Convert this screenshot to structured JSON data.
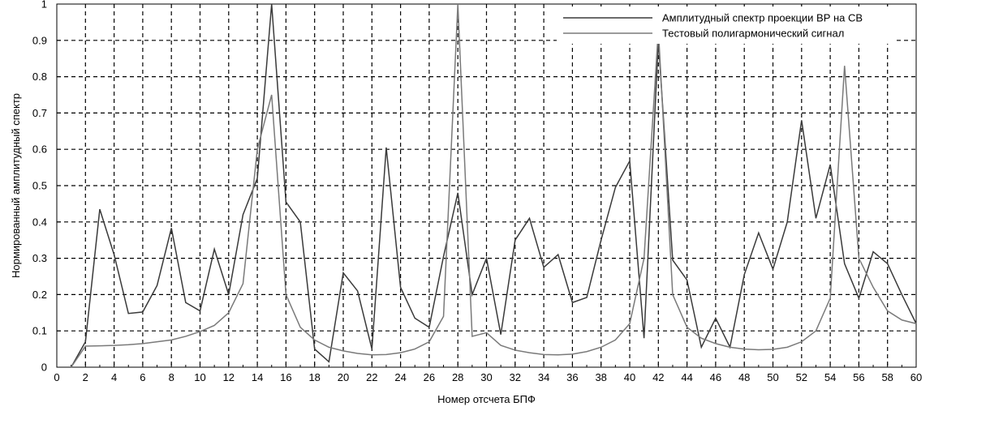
{
  "chart_data": {
    "type": "line",
    "xlabel": "Номер отсчета БПФ",
    "ylabel": "Нормированный амплитудный спектр",
    "xlim": [
      0,
      60
    ],
    "ylim": [
      0,
      1
    ],
    "x_ticks": [
      0,
      2,
      4,
      6,
      8,
      10,
      12,
      14,
      16,
      18,
      20,
      22,
      24,
      26,
      28,
      30,
      32,
      34,
      36,
      38,
      40,
      42,
      44,
      46,
      48,
      50,
      52,
      54,
      56,
      58,
      60
    ],
    "y_ticks": [
      0,
      0.1,
      0.2,
      0.3,
      0.4,
      0.5,
      0.6,
      0.7,
      0.8,
      0.9,
      1
    ],
    "y_tick_labels": [
      "0",
      "0.1",
      "0.2",
      "0.3",
      "0.4",
      "0.5",
      "0.6",
      "0.7",
      "0.8",
      "0.9",
      "1"
    ],
    "grid": true,
    "legend_position": "top-right",
    "x": [
      1,
      2,
      3,
      4,
      5,
      6,
      7,
      8,
      9,
      10,
      11,
      12,
      13,
      14,
      15,
      16,
      17,
      18,
      19,
      20,
      21,
      22,
      23,
      24,
      25,
      26,
      27,
      28,
      29,
      30,
      31,
      32,
      33,
      34,
      35,
      36,
      37,
      38,
      39,
      40,
      41,
      42,
      43,
      44,
      45,
      46,
      47,
      48,
      49,
      50,
      51,
      52,
      53,
      54,
      55,
      56,
      57,
      58,
      59,
      60
    ],
    "series": [
      {
        "name": "Амплитудный спектр проекции ВР на СВ",
        "color": "#3a3a3a",
        "values": [
          0.0,
          0.07,
          0.435,
          0.31,
          0.148,
          0.152,
          0.225,
          0.383,
          0.178,
          0.155,
          0.325,
          0.2,
          0.42,
          0.52,
          1.0,
          0.455,
          0.4,
          0.05,
          0.015,
          0.26,
          0.21,
          0.05,
          0.605,
          0.22,
          0.135,
          0.11,
          0.305,
          0.48,
          0.2,
          0.3,
          0.09,
          0.35,
          0.41,
          0.275,
          0.31,
          0.178,
          0.192,
          0.35,
          0.495,
          0.568,
          0.08,
          0.9,
          0.295,
          0.24,
          0.055,
          0.135,
          0.055,
          0.255,
          0.37,
          0.27,
          0.4,
          0.68,
          0.41,
          0.558,
          0.285,
          0.19,
          0.318,
          0.285,
          0.2,
          0.12
        ]
      },
      {
        "name": "Тестовый полигармонический сигнал",
        "color": "#7a7a7a",
        "values": [
          0.0,
          0.058,
          0.059,
          0.06,
          0.062,
          0.065,
          0.07,
          0.075,
          0.085,
          0.098,
          0.115,
          0.15,
          0.23,
          0.6,
          0.75,
          0.2,
          0.11,
          0.075,
          0.055,
          0.045,
          0.038,
          0.034,
          0.035,
          0.04,
          0.05,
          0.07,
          0.14,
          1.0,
          0.085,
          0.095,
          0.06,
          0.047,
          0.04,
          0.035,
          0.034,
          0.036,
          0.043,
          0.055,
          0.075,
          0.12,
          0.3,
          0.93,
          0.2,
          0.11,
          0.08,
          0.065,
          0.055,
          0.05,
          0.048,
          0.049,
          0.055,
          0.07,
          0.1,
          0.19,
          0.83,
          0.3,
          0.22,
          0.155,
          0.13,
          0.12
        ]
      }
    ]
  }
}
